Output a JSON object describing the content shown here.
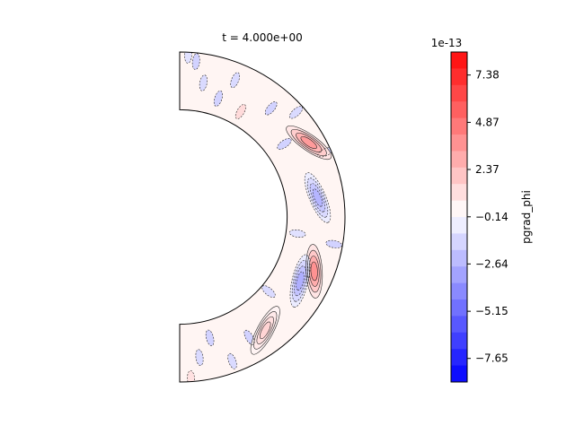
{
  "chart_data": {
    "type": "heatmap",
    "subtype": "filled-contour-annulus",
    "title": "t = 4.000e+00",
    "colorbar": {
      "label": "pgrad_phi",
      "offset_text": "1e-13",
      "tick_labels": [
        "7.38",
        "4.87",
        "2.37",
        "−0.14",
        "−2.64",
        "−5.15",
        "−7.65"
      ],
      "tick_values": [
        7.38,
        4.87,
        2.37,
        -0.14,
        -2.64,
        -5.15,
        -7.65
      ],
      "range": [
        -8.9,
        8.6
      ],
      "n_levels": 20,
      "colormap": "bwr",
      "scale_exponent": -13
    },
    "domain": {
      "shape": "half-annulus",
      "inner_radius_ratio": 0.65,
      "theta_range_deg": [
        0,
        180
      ]
    },
    "features": [
      {
        "name": "positive-streak-upper",
        "theta_deg": 60,
        "radius_frac": 0.72,
        "value": 3.5
      },
      {
        "name": "positive-streak-lower",
        "theta_deg": 112,
        "radius_frac": 0.65,
        "value": 3.8
      },
      {
        "name": "negative-band-equator",
        "theta_deg": 82,
        "radius_frac": 0.55,
        "value": -2.6
      },
      {
        "name": "negative-band-lower",
        "theta_deg": 118,
        "radius_frac": 0.5,
        "value": -2.8
      },
      {
        "name": "positive-small-lower",
        "theta_deg": 143,
        "radius_frac": 0.6,
        "value": 1.5
      }
    ],
    "colors": {
      "max": "#ff0000",
      "min": "#0000ff",
      "mid": "#ffffff"
    }
  }
}
